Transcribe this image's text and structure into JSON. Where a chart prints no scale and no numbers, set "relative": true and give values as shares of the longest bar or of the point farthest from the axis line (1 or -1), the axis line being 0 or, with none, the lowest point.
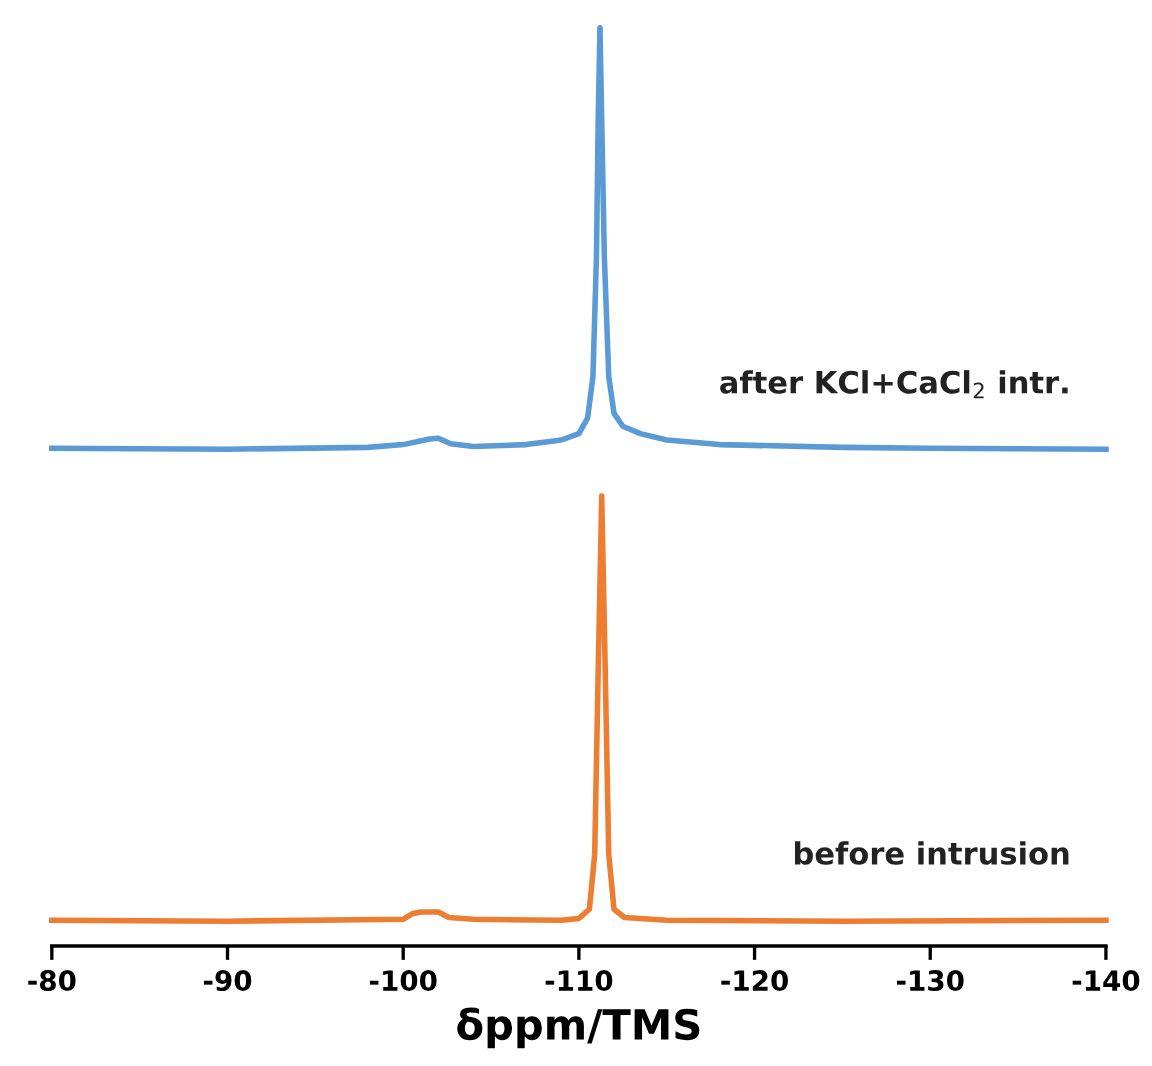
{
  "chart_data": {
    "type": "line",
    "relative": true,
    "xlabel": "δppm/TMS",
    "xlim": [
      -80,
      -140
    ],
    "xticks": [
      -80,
      -90,
      -100,
      -110,
      -120,
      -130,
      -140
    ],
    "grid": false,
    "legend": false,
    "series": [
      {
        "name": "after KCl+CaCl$_{2}$ intr.",
        "color": "#5b9bd5",
        "x": [
          -80,
          -90,
          -98,
          -100,
          -101.5,
          -102,
          -102.7,
          -104,
          -107,
          -109,
          -110,
          -110.5,
          -110.8,
          -111,
          -111.1,
          -111.2,
          -111.3,
          -111.45,
          -111.7,
          -112,
          -112.5,
          -113.5,
          -115,
          -118,
          -125,
          -130,
          -140
        ],
        "values": [
          0.542,
          0.541,
          0.543,
          0.546,
          0.552,
          0.553,
          0.547,
          0.544,
          0.546,
          0.551,
          0.558,
          0.575,
          0.62,
          0.75,
          0.9,
          1.0,
          0.9,
          0.75,
          0.62,
          0.58,
          0.566,
          0.558,
          0.551,
          0.546,
          0.543,
          0.542,
          0.541
        ]
      },
      {
        "name": "before intrusion",
        "color": "#ed7d31",
        "x": [
          -80,
          -90,
          -100,
          -100.5,
          -101,
          -102,
          -102.6,
          -104,
          -109,
          -110,
          -110.6,
          -110.9,
          -111.1,
          -111.3,
          -111.5,
          -111.7,
          -112,
          -112.6,
          -115,
          -125,
          -140
        ],
        "values": [
          0.028,
          0.027,
          0.029,
          0.035,
          0.037,
          0.037,
          0.031,
          0.029,
          0.028,
          0.03,
          0.04,
          0.1,
          0.3,
          0.49,
          0.3,
          0.1,
          0.04,
          0.031,
          0.028,
          0.027,
          0.028
        ]
      }
    ]
  }
}
